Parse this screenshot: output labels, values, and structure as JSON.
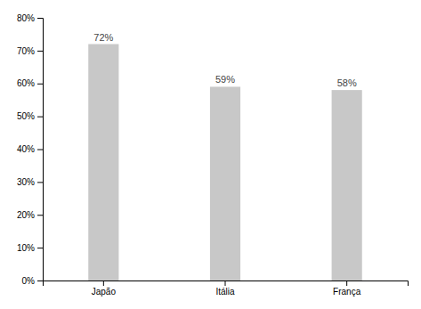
{
  "chart_data": {
    "type": "bar",
    "categories": [
      "Japão",
      "Itália",
      "França"
    ],
    "values": [
      0.72,
      0.59,
      0.58
    ],
    "value_labels": [
      "72%",
      "59%",
      "58%"
    ],
    "data_labels": true,
    "color": "#c8c8c8",
    "ylim": [
      0,
      0.8
    ],
    "yticks": [
      {
        "value": 0,
        "label": "0%"
      },
      {
        "value": 0.1,
        "label": "10%"
      },
      {
        "value": 0.2,
        "label": "20%"
      },
      {
        "value": 0.3,
        "label": "30%"
      },
      {
        "value": 0.4,
        "label": "40%"
      },
      {
        "value": 0.5,
        "label": "50%"
      },
      {
        "value": 0.6,
        "label": "60%"
      },
      {
        "value": 0.7,
        "label": "70%"
      },
      {
        "value": 0.8,
        "label": "80%"
      }
    ],
    "grid": false
  }
}
